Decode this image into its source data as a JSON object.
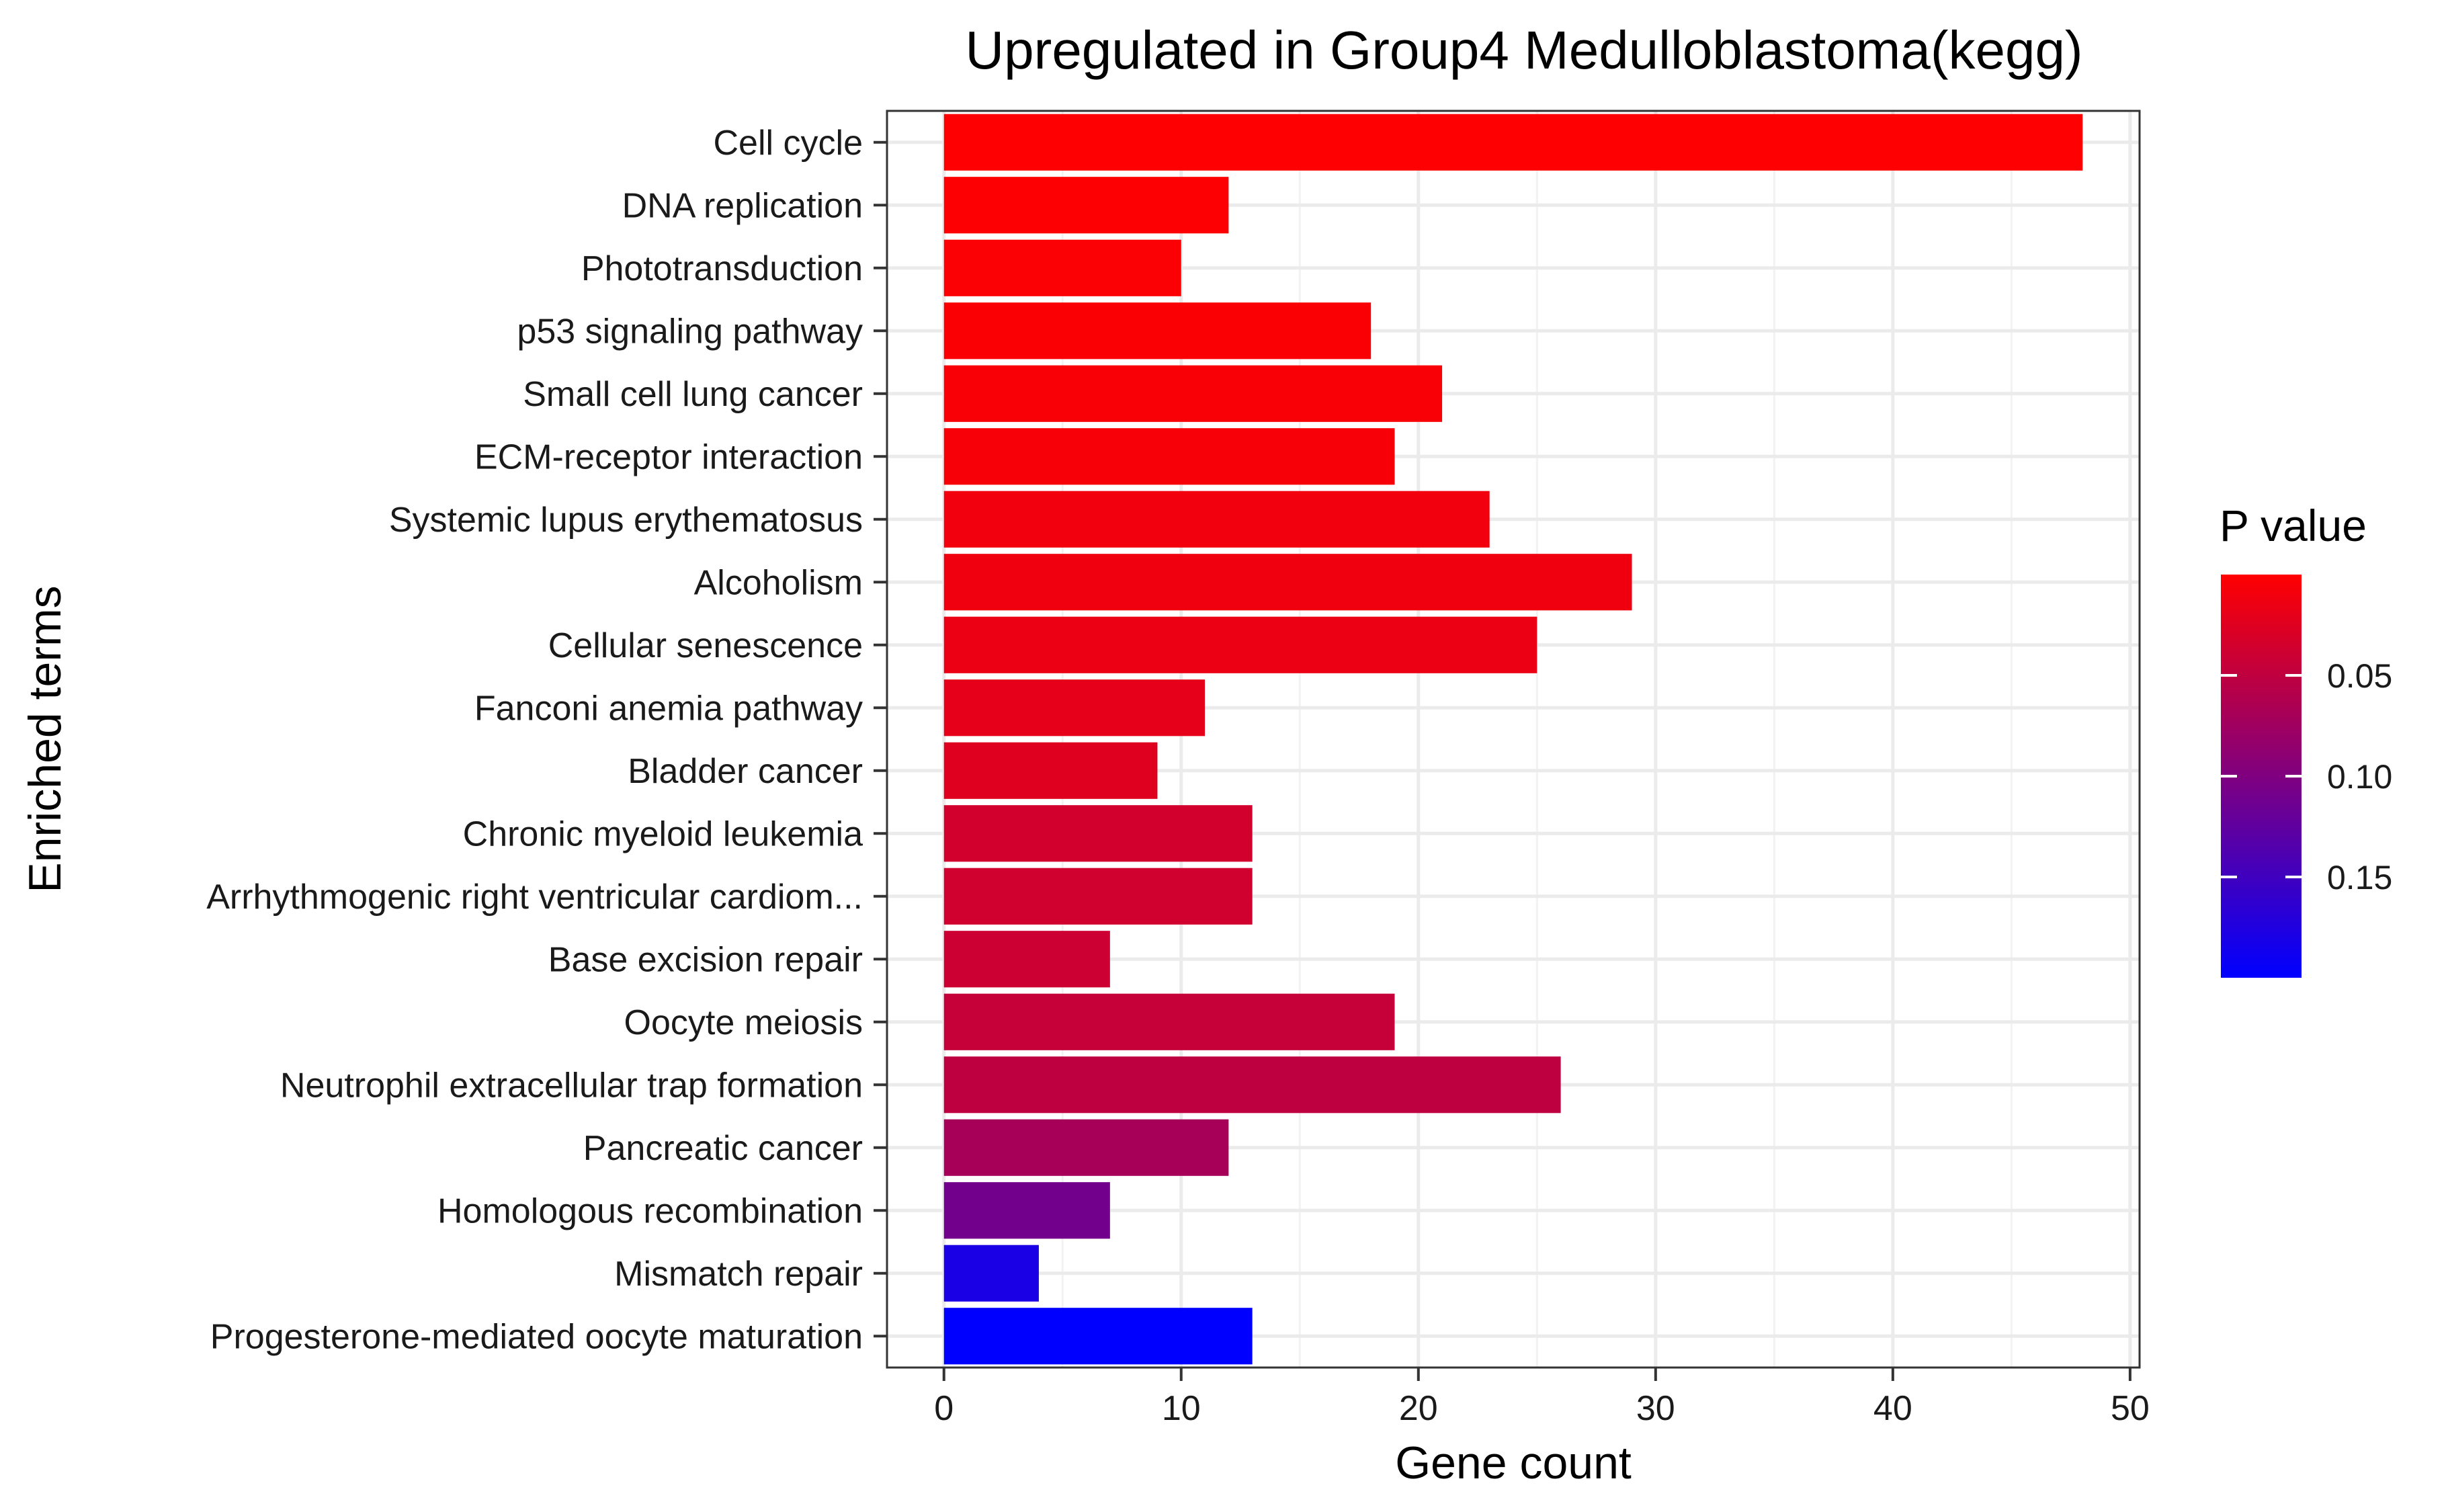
{
  "chart_data": {
    "type": "bar",
    "orientation": "horizontal",
    "title": "Upregulated in Group4 Medulloblastoma(kegg)",
    "xlabel": "Gene count",
    "ylabel": "Enriched terms",
    "xlim": [
      -2.4,
      50.4
    ],
    "x_ticks": [
      0,
      10,
      20,
      30,
      40,
      50
    ],
    "grid": true,
    "legend": {
      "title": "P value",
      "position": "right",
      "low_color": "#FF0000",
      "high_color": "#0000FF",
      "range": [
        0.0,
        0.2
      ],
      "ticks": [
        0.05,
        0.1,
        0.15
      ],
      "tick_labels": [
        "0.05",
        "0.10",
        "0.15"
      ]
    },
    "categories": [
      "Cell cycle",
      "DNA replication",
      "Phototransduction",
      "p53 signaling pathway",
      "Small cell lung cancer",
      "ECM-receptor interaction",
      "Systemic lupus erythematosus",
      "Alcoholism",
      "Cellular senescence",
      "Fanconi anemia pathway",
      "Bladder cancer",
      "Chronic myeloid leukemia",
      "Arrhythmogenic right ventricular cardiom...",
      "Base excision repair",
      "Oocyte meiosis",
      "Neutrophil extracellular trap formation",
      "Pancreatic cancer",
      "Homologous recombination",
      "Mismatch repair",
      "Progesterone-mediated oocyte maturation"
    ],
    "values": [
      48,
      12,
      10,
      18,
      21,
      19,
      23,
      29,
      25,
      11,
      9,
      13,
      13,
      7,
      19,
      26,
      12,
      7,
      4,
      13
    ],
    "p_values": [
      0.001,
      0.002,
      0.003,
      0.004,
      0.005,
      0.006,
      0.01,
      0.012,
      0.015,
      0.02,
      0.025,
      0.035,
      0.037,
      0.04,
      0.045,
      0.05,
      0.07,
      0.11,
      0.18,
      0.2
    ]
  }
}
